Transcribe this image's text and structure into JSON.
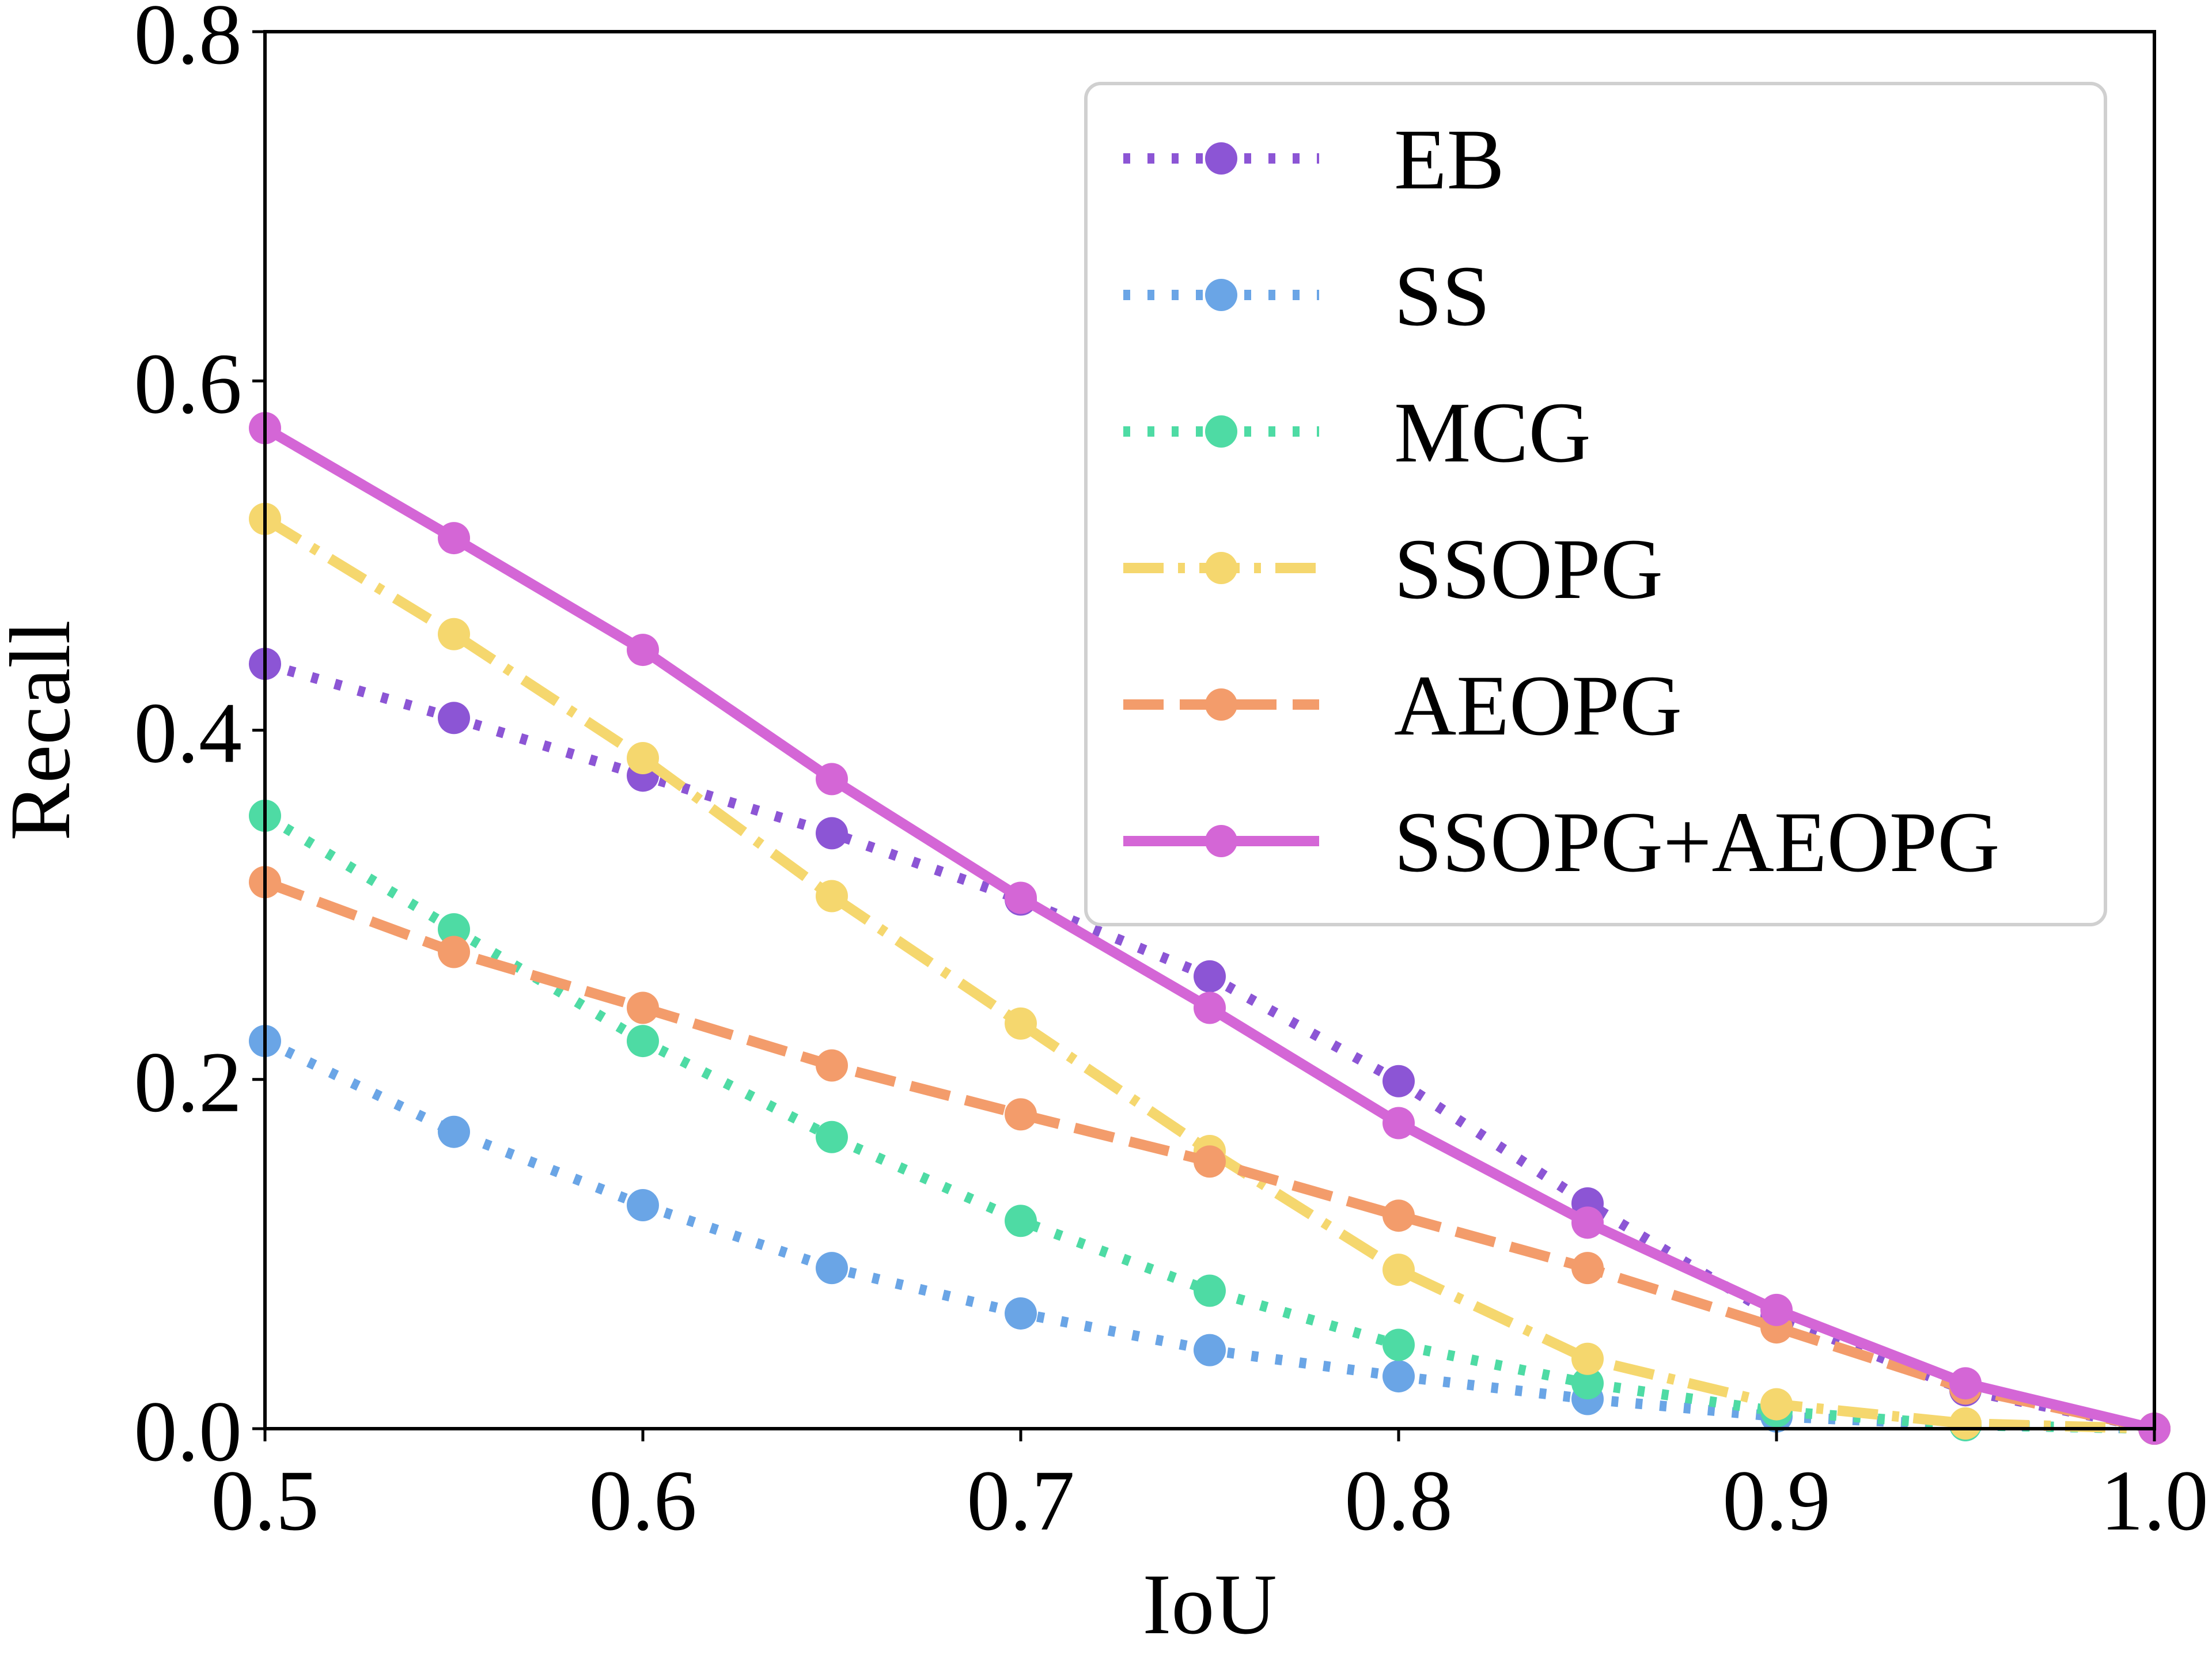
{
  "chart_data": {
    "type": "line",
    "title": "",
    "xlabel": "IoU",
    "ylabel": "Recall",
    "xlim": [
      0.5,
      1.0
    ],
    "ylim": [
      0.0,
      0.8
    ],
    "xticks": [
      0.5,
      0.6,
      0.7,
      0.8,
      0.9,
      1.0
    ],
    "yticks": [
      0.0,
      0.2,
      0.4,
      0.6,
      0.8
    ],
    "xtick_labels": [
      "0.5",
      "0.6",
      "0.7",
      "0.8",
      "0.9",
      "1.0"
    ],
    "ytick_labels": [
      "0.0",
      "0.2",
      "0.4",
      "0.6",
      "0.8"
    ],
    "grid": false,
    "legend_position": "top-right",
    "x": [
      0.5,
      0.55,
      0.6,
      0.65,
      0.7,
      0.75,
      0.8,
      0.85,
      0.9,
      0.95,
      1.0
    ],
    "series": [
      {
        "name": "EB",
        "style": "dotted",
        "color": "#8C55D5",
        "values": [
          0.438,
          0.407,
          0.374,
          0.341,
          0.303,
          0.259,
          0.199,
          0.129,
          0.064,
          0.022,
          0.0
        ]
      },
      {
        "name": "SS",
        "style": "dotted",
        "color": "#6AA5E6",
        "values": [
          0.222,
          0.17,
          0.128,
          0.092,
          0.066,
          0.045,
          0.03,
          0.017,
          0.007,
          0.002,
          0.0
        ]
      },
      {
        "name": "MCG",
        "style": "dotted",
        "color": "#4EDBA4",
        "values": [
          0.351,
          0.286,
          0.222,
          0.167,
          0.119,
          0.079,
          0.048,
          0.026,
          0.01,
          0.002,
          0.0
        ]
      },
      {
        "name": "SSOPG",
        "style": "dashdot",
        "color": "#F5D76E",
        "values": [
          0.521,
          0.455,
          0.384,
          0.305,
          0.232,
          0.159,
          0.091,
          0.04,
          0.014,
          0.003,
          0.0
        ]
      },
      {
        "name": "AEOPG",
        "style": "dashed",
        "color": "#F39C6B",
        "values": [
          0.313,
          0.273,
          0.241,
          0.208,
          0.18,
          0.153,
          0.122,
          0.092,
          0.058,
          0.023,
          0.0
        ]
      },
      {
        "name": "SSOPG+AEOPG",
        "style": "solid",
        "color": "#D466D6",
        "values": [
          0.573,
          0.51,
          0.446,
          0.372,
          0.304,
          0.241,
          0.175,
          0.118,
          0.068,
          0.026,
          0.0
        ]
      }
    ]
  }
}
